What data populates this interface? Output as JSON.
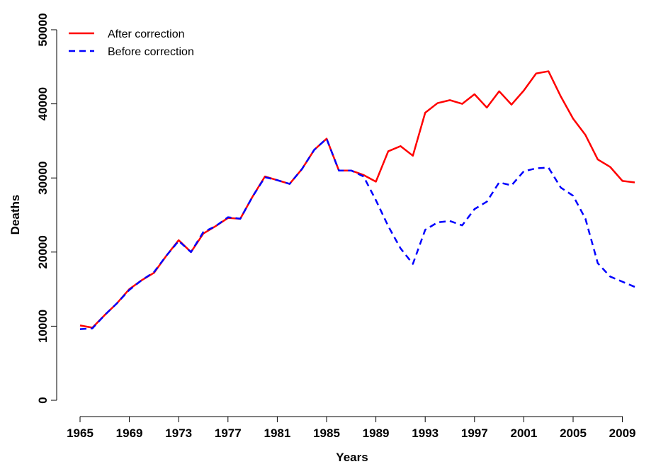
{
  "chart_data": {
    "type": "line",
    "xlabel": "Years",
    "ylabel": "Deaths",
    "x": [
      1965,
      1966,
      1967,
      1968,
      1969,
      1970,
      1971,
      1972,
      1973,
      1974,
      1975,
      1976,
      1977,
      1978,
      1979,
      1980,
      1981,
      1982,
      1983,
      1984,
      1985,
      1986,
      1987,
      1988,
      1989,
      1990,
      1991,
      1992,
      1993,
      1994,
      1995,
      1996,
      1997,
      1998,
      1999,
      2000,
      2001,
      2002,
      2003,
      2004,
      2005,
      2006,
      2007,
      2008,
      2009,
      2010
    ],
    "series": [
      {
        "name": "After correction",
        "color": "#ff0000",
        "dash": false,
        "values": [
          10100,
          9800,
          11500,
          13100,
          15000,
          16200,
          17200,
          19500,
          21600,
          20000,
          22500,
          23500,
          24600,
          24500,
          27500,
          30200,
          29700,
          29200,
          31200,
          33800,
          35300,
          31000,
          31000,
          30400,
          29500,
          33600,
          34300,
          33000,
          38800,
          40100,
          40500,
          40000,
          41300,
          39500,
          41700,
          39900,
          41800,
          44100,
          44400,
          41000,
          38000,
          35800,
          32500,
          31500,
          29600,
          29400
        ]
      },
      {
        "name": "Before correction",
        "color": "#0000ff",
        "dash": true,
        "values": [
          9600,
          9700,
          11500,
          13100,
          14900,
          16200,
          17300,
          19500,
          21500,
          20000,
          22700,
          23500,
          24700,
          24500,
          27500,
          30100,
          29700,
          29200,
          31200,
          33800,
          35300,
          31000,
          31000,
          30200,
          27000,
          23500,
          20500,
          18400,
          23000,
          24000,
          24200,
          23600,
          25800,
          26800,
          29400,
          29000,
          30900,
          31300,
          31400,
          28700,
          27600,
          24500,
          18500,
          16700,
          16000,
          15300
        ]
      }
    ],
    "xlim": [
      1965,
      2010
    ],
    "xticks": [
      1965,
      1969,
      1973,
      1977,
      1981,
      1985,
      1989,
      1993,
      1997,
      2001,
      2005,
      2009
    ],
    "ylim": [
      0,
      50000
    ],
    "yticks": [
      0,
      10000,
      20000,
      30000,
      40000,
      50000
    ],
    "legend": "top-left"
  }
}
